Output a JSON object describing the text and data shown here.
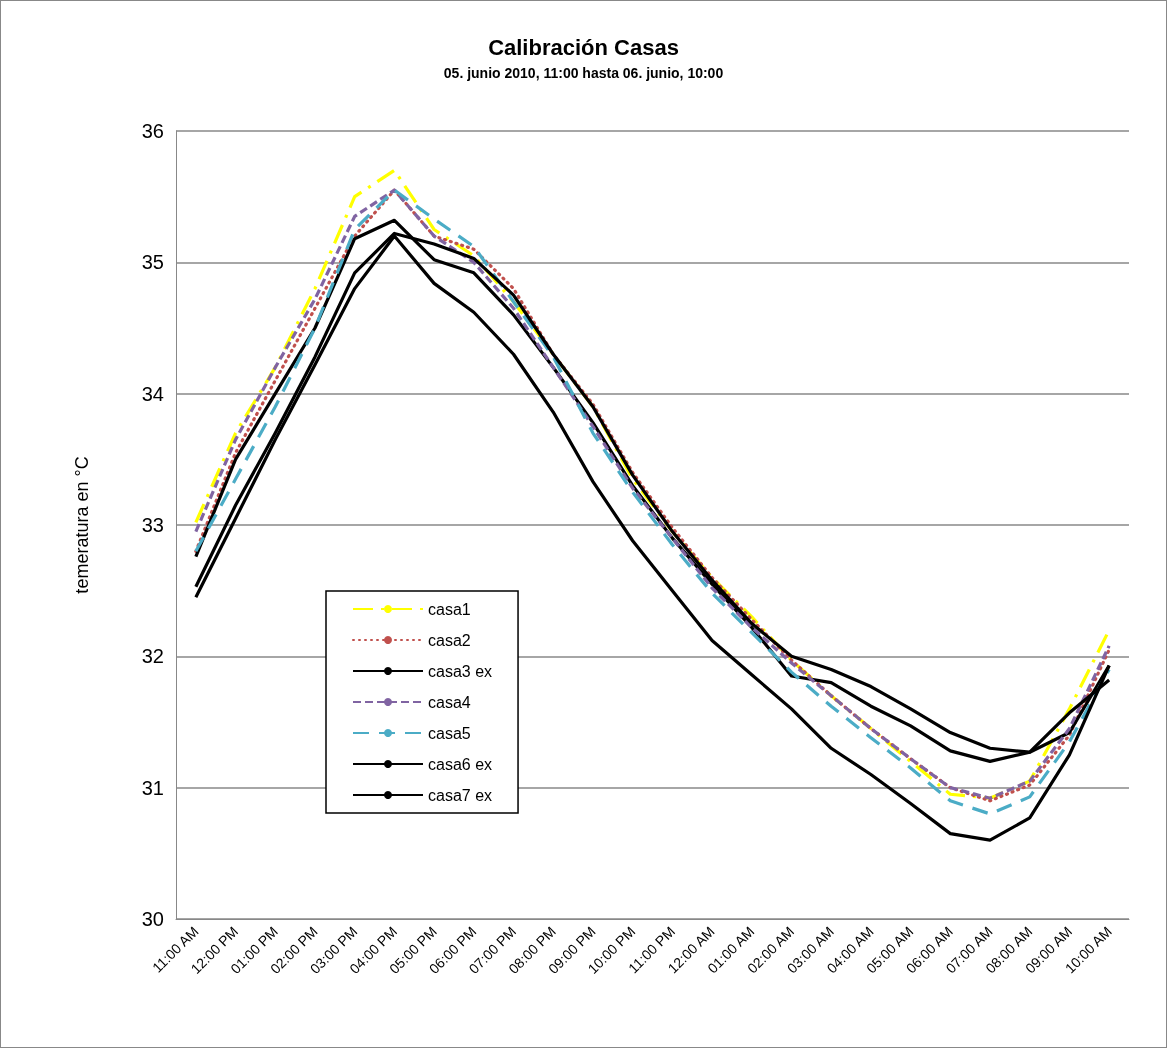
{
  "chart_data": {
    "type": "line",
    "title": "Calibración Casas",
    "subtitle": "05. junio 2010, 11:00 hasta 06. junio, 10:00",
    "ylabel": "temeratura en °C",
    "categories": [
      "11:00 AM",
      "12:00 PM",
      "01:00 PM",
      "02:00 PM",
      "03:00 PM",
      "04:00 PM",
      "05:00 PM",
      "06:00 PM",
      "07:00 PM",
      "08:00 PM",
      "09:00 PM",
      "10:00 PM",
      "11:00 PM",
      "12:00 AM",
      "01:00 AM",
      "02:00 AM",
      "03:00 AM",
      "04:00 AM",
      "05:00 AM",
      "06:00 AM",
      "07:00 AM",
      "08:00 AM",
      "09:00 AM",
      "10:00 AM"
    ],
    "series": [
      {
        "name": "casa1",
        "color": "#ffff00",
        "line_style": "dashdot",
        "values": [
          33.02,
          33.7,
          34.2,
          34.8,
          35.5,
          35.7,
          35.25,
          35.05,
          34.7,
          34.3,
          33.9,
          33.35,
          32.95,
          32.6,
          32.3,
          31.97,
          31.7,
          31.45,
          31.2,
          30.95,
          30.92,
          31.05,
          31.6,
          32.2
        ]
      },
      {
        "name": "casa2",
        "color": "#c0504d",
        "line_style": "dotted",
        "values": [
          32.8,
          33.55,
          34.1,
          34.65,
          35.2,
          35.55,
          35.2,
          35.1,
          34.8,
          34.3,
          33.92,
          33.4,
          32.98,
          32.6,
          32.28,
          31.97,
          31.7,
          31.45,
          31.22,
          31.0,
          30.9,
          31.02,
          31.4,
          32.05
        ]
      },
      {
        "name": "casa3 ex",
        "color": "#000000",
        "line_style": "solid",
        "values": [
          32.76,
          33.5,
          34.0,
          34.5,
          35.18,
          35.32,
          35.02,
          34.92,
          34.6,
          34.2,
          33.78,
          33.3,
          32.9,
          32.55,
          32.22,
          31.85,
          31.8,
          31.62,
          31.47,
          31.28,
          31.2,
          31.27,
          31.42,
          31.93
        ]
      },
      {
        "name": "casa4",
        "color": "#8064a2",
        "line_style": "dashed",
        "values": [
          32.95,
          33.65,
          34.2,
          34.72,
          35.35,
          35.55,
          35.2,
          35.0,
          34.65,
          34.2,
          33.75,
          33.28,
          32.9,
          32.52,
          32.22,
          31.95,
          31.7,
          31.45,
          31.22,
          31.0,
          30.92,
          31.05,
          31.45,
          32.08
        ]
      },
      {
        "name": "casa5",
        "color": "#4bacc6",
        "line_style": "longdash",
        "values": [
          32.8,
          33.35,
          33.9,
          34.5,
          35.25,
          35.55,
          35.33,
          35.12,
          34.7,
          34.28,
          33.7,
          33.25,
          32.85,
          32.48,
          32.18,
          31.88,
          31.62,
          31.38,
          31.15,
          30.9,
          30.8,
          30.93,
          31.35,
          31.9
        ]
      },
      {
        "name": "casa6 ex",
        "color": "#000000",
        "line_style": "solid",
        "values": [
          32.53,
          33.15,
          33.7,
          34.28,
          34.92,
          35.22,
          35.14,
          35.03,
          34.75,
          34.3,
          33.9,
          33.38,
          32.95,
          32.58,
          32.25,
          32.0,
          31.9,
          31.77,
          31.6,
          31.42,
          31.3,
          31.27,
          31.57,
          31.82
        ]
      },
      {
        "name": "casa7 ex",
        "color": "#000000",
        "line_style": "solid",
        "values": [
          32.45,
          33.05,
          33.65,
          34.22,
          34.8,
          35.2,
          34.84,
          34.62,
          34.3,
          33.86,
          33.33,
          32.88,
          32.5,
          32.12,
          31.86,
          31.6,
          31.3,
          31.1,
          30.88,
          30.65,
          30.6,
          30.77,
          31.25,
          31.93
        ]
      }
    ],
    "ylim": [
      30,
      36
    ],
    "yticks": [
      30,
      31,
      32,
      33,
      34,
      35,
      36
    ],
    "grid": "y",
    "legend": "bottom left",
    "marker": "none"
  }
}
